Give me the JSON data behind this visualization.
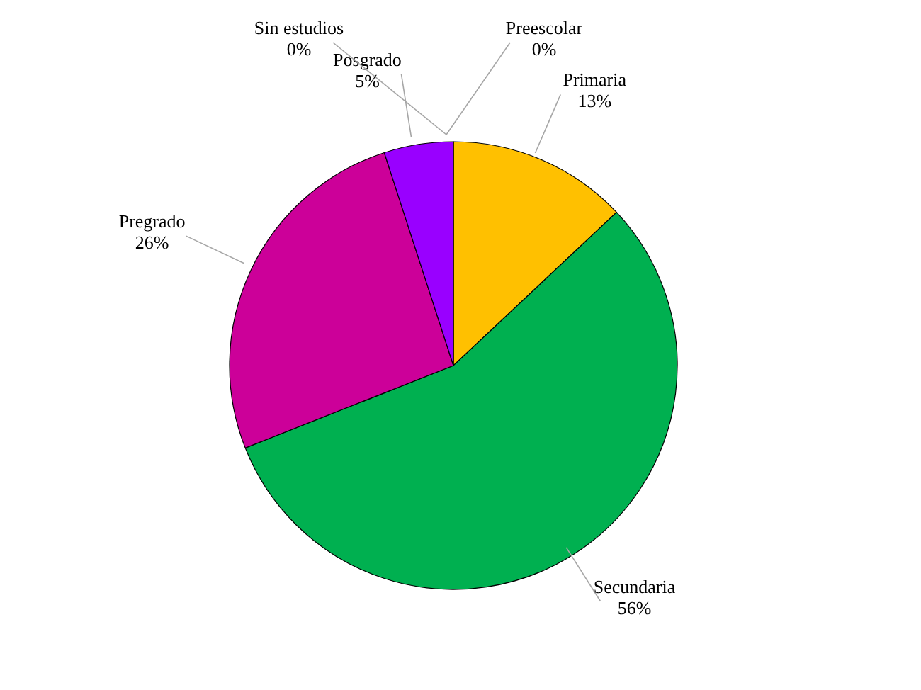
{
  "chart_data": {
    "type": "pie",
    "categories": [
      "Preescolar",
      "Primaria",
      "Secundaria",
      "Pregrado",
      "Posgrado",
      "Sin estudios"
    ],
    "values": [
      0,
      13,
      56,
      26,
      5,
      0
    ],
    "value_labels": [
      "0%",
      "13%",
      "56%",
      "26%",
      "5%",
      "0%"
    ],
    "colors": [
      "#4472c4",
      "#ffc000",
      "#00b050",
      "#cc0099",
      "#9900ff",
      "#a5a5a5"
    ]
  }
}
